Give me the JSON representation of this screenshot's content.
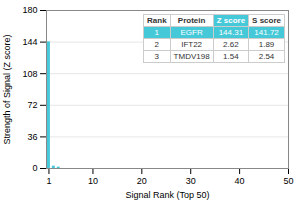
{
  "chart_data": {
    "type": "bar",
    "xlabel": "Signal Rank (Top 50)",
    "ylabel": "Strength of Signal (Z score)",
    "x": [
      1,
      2,
      3
    ],
    "values": [
      144.31,
      2.62,
      1.54
    ],
    "color": "#45c8d8",
    "xlim": [
      0.5,
      50
    ],
    "ylim": [
      0,
      180
    ],
    "xticks": [
      1,
      10,
      20,
      30,
      40,
      50
    ],
    "yticks": [
      0,
      36,
      72,
      108,
      144,
      180
    ],
    "grid": true,
    "table": {
      "columns": [
        "Rank",
        "Protein",
        "Z score",
        "S score"
      ],
      "rows": [
        [
          1,
          "EGFR",
          144.31,
          141.72
        ],
        [
          2,
          "IFT22",
          2.62,
          1.89
        ],
        [
          3,
          "TMDV198",
          1.54,
          2.54
        ]
      ]
    }
  }
}
